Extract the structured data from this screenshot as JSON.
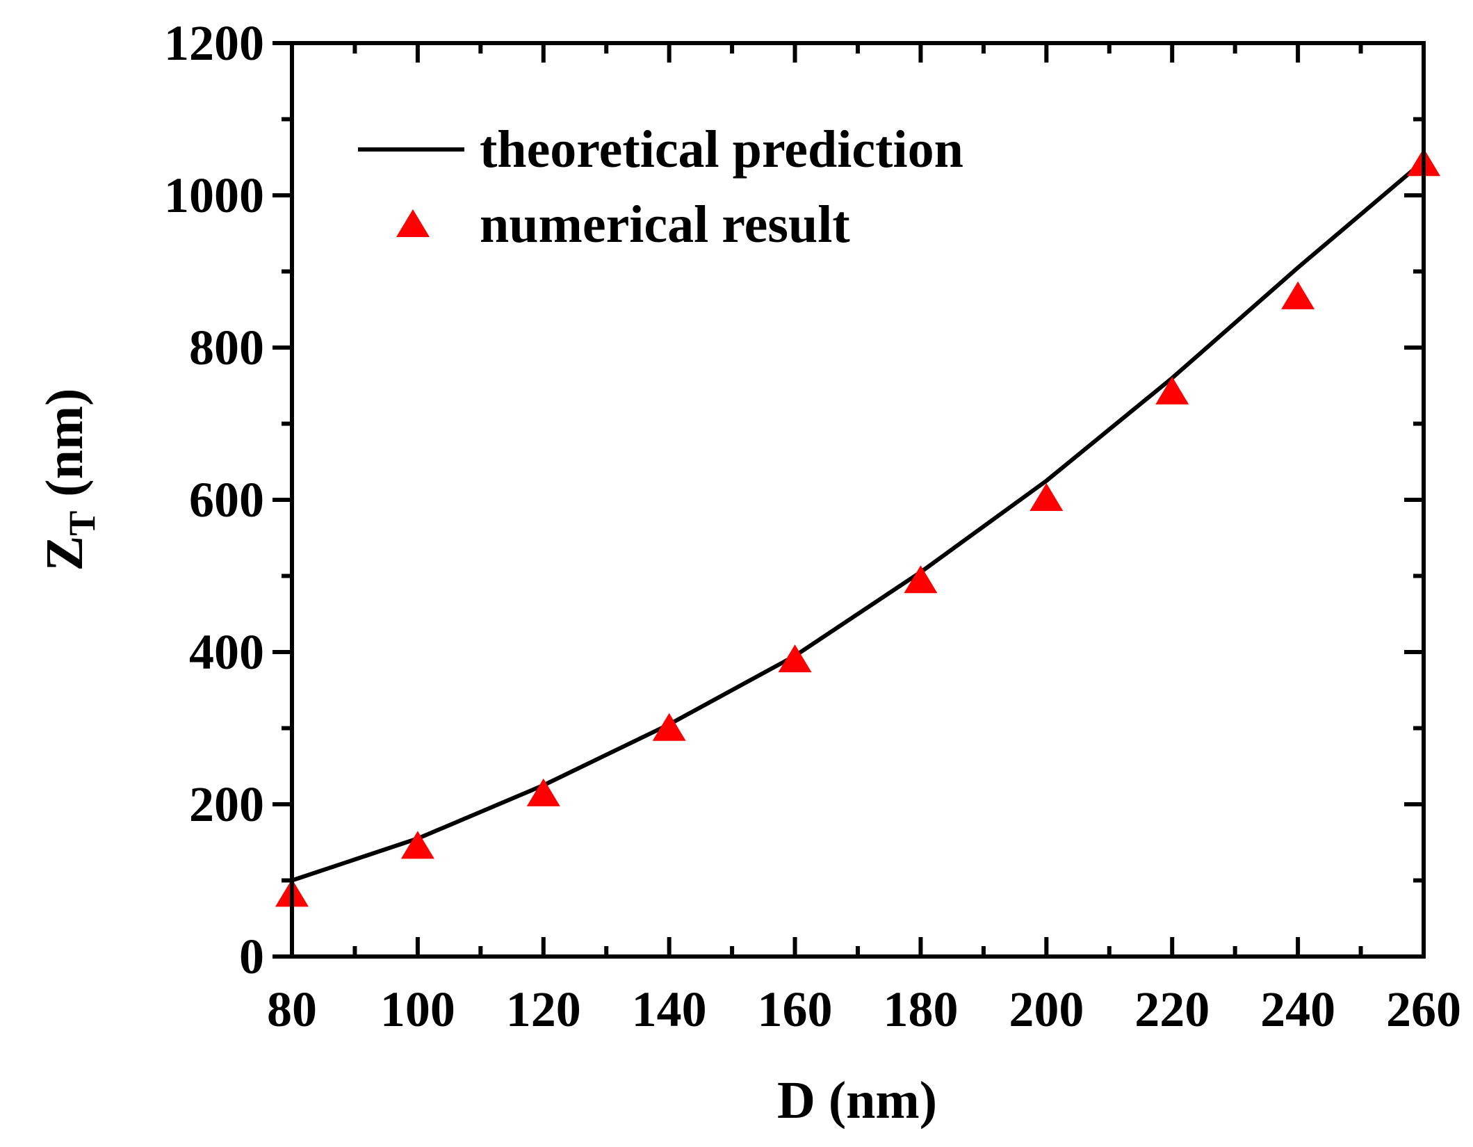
{
  "chart_data": {
    "type": "line+scatter",
    "title": "",
    "xlabel": "D (nm)",
    "ylabel": {
      "main": "Z",
      "subscript": "T",
      "unit": "(nm)"
    },
    "xlim": [
      80,
      260
    ],
    "ylim": [
      0,
      1200
    ],
    "xticks": [
      "80",
      "100",
      "120",
      "140",
      "160",
      "180",
      "200",
      "220",
      "240",
      "260"
    ],
    "yticks": [
      "0",
      "200",
      "400",
      "600",
      "800",
      "1000",
      "1200"
    ],
    "legend_position": "top-left",
    "series": [
      {
        "name": "theoretical prediction",
        "kind": "line",
        "color": "#000000",
        "x": [
          80,
          100,
          120,
          140,
          160,
          180,
          200,
          220,
          240,
          260
        ],
        "y": [
          100,
          155,
          225,
          305,
          395,
          505,
          625,
          760,
          905,
          1045
        ]
      },
      {
        "name": "numerical result",
        "kind": "scatter",
        "marker": "triangle",
        "color": "#ff0000",
        "x": [
          80,
          100,
          120,
          140,
          160,
          180,
          200,
          220,
          240,
          260
        ],
        "y": [
          80,
          143,
          212,
          298,
          388,
          492,
          600,
          740,
          865,
          1040
        ]
      }
    ]
  }
}
